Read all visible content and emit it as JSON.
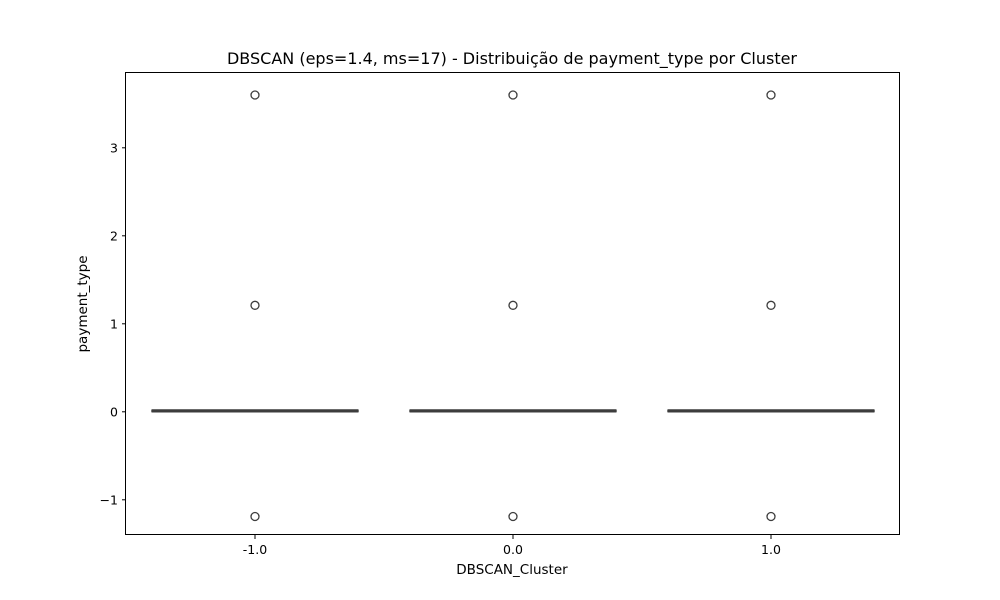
{
  "chart_data": {
    "type": "box",
    "title": "DBSCAN (eps=1.4, ms=17)  - Distribuição de payment_type por Cluster",
    "xlabel": "DBSCAN_Cluster",
    "ylabel": "payment_type",
    "categories": [
      "-1.0",
      "0.0",
      "1.0"
    ],
    "ylim": [
      -1.4,
      3.85
    ],
    "yticks": [
      -1,
      0,
      1,
      2,
      3
    ],
    "ytick_labels": [
      "−1",
      "0",
      "1",
      "2",
      "3"
    ],
    "grid": false,
    "boxes": [
      {
        "category": "-1.0",
        "q1": 0.0,
        "median": 0.0,
        "q3": 0.02,
        "whisker_low": 0.0,
        "whisker_high": 0.02,
        "outliers": [
          3.6,
          1.21,
          -1.19
        ]
      },
      {
        "category": "0.0",
        "q1": 0.0,
        "median": 0.0,
        "q3": 0.02,
        "whisker_low": 0.0,
        "whisker_high": 0.02,
        "outliers": [
          3.6,
          1.21,
          -1.19
        ]
      },
      {
        "category": "1.0",
        "q1": 0.0,
        "median": 0.0,
        "q3": 0.02,
        "whisker_low": 0.0,
        "whisker_high": 0.02,
        "outliers": [
          3.6,
          1.21,
          -1.19
        ]
      }
    ],
    "colors": {
      "box": "#3d3d3d",
      "axes": "#000000",
      "background": "#ffffff"
    }
  }
}
